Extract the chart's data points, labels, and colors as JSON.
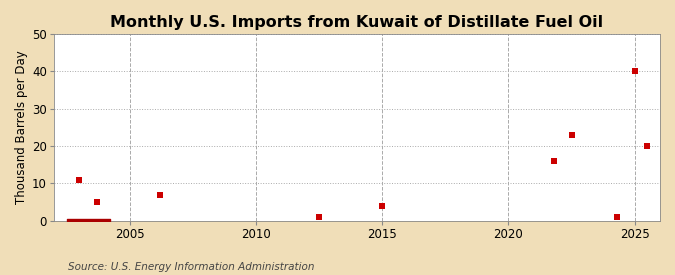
{
  "title": "Monthly U.S. Imports from Kuwait of Distillate Fuel Oil",
  "ylabel": "Thousand Barrels per Day",
  "source": "Source: U.S. Energy Information Administration",
  "background_color": "#f0deb8",
  "plot_background_color": "#ffffff",
  "marker_color": "#cc0000",
  "bar_color": "#aa0000",
  "xlim": [
    2002,
    2026
  ],
  "ylim": [
    0,
    50
  ],
  "yticks": [
    0,
    10,
    20,
    30,
    40,
    50
  ],
  "xticks": [
    2005,
    2010,
    2015,
    2020,
    2025
  ],
  "data_points": [
    [
      2003.0,
      11
    ],
    [
      2003.7,
      5
    ],
    [
      2006.2,
      7
    ],
    [
      2012.5,
      1
    ],
    [
      2015.0,
      4
    ],
    [
      2021.8,
      16
    ],
    [
      2022.5,
      23
    ],
    [
      2024.3,
      1
    ],
    [
      2025.0,
      40
    ],
    [
      2025.5,
      20
    ]
  ],
  "bar_x_start": 2002.5,
  "bar_x_end": 2004.2,
  "bar_y": 0.6,
  "title_fontsize": 11.5,
  "axis_fontsize": 8.5,
  "source_fontsize": 7.5,
  "marker_size": 16
}
